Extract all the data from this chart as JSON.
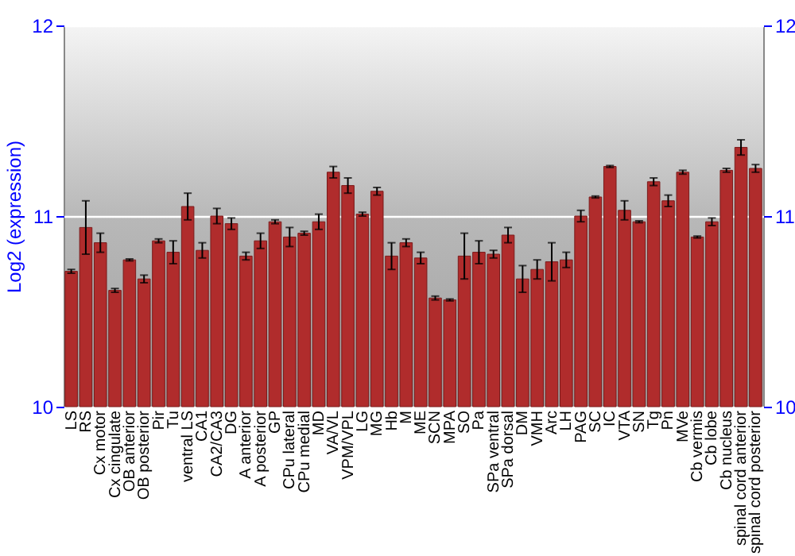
{
  "chart_data": {
    "type": "bar",
    "ylabel": "Log2 (expression)",
    "categories": [
      "LS",
      "RS",
      "Cx motor",
      "Cx cingulate",
      "OB anterior",
      "OB posterior",
      "Pir",
      "Tu",
      "ventral LS",
      "CA1",
      "CA2/CA3",
      "DG",
      "A anterior",
      "A posterior",
      "GP",
      "CPu lateral",
      "CPu medial",
      "MD",
      "VA/VL",
      "VPM/VPL",
      "LG",
      "MG",
      "Hb",
      "M",
      "ME",
      "SCN",
      "MPA",
      "SO",
      "Pa",
      "SPa ventral",
      "SPa dorsal",
      "DM",
      "VMH",
      "Arc",
      "LH",
      "PAG",
      "SC",
      "IC",
      "VTA",
      "SN",
      "Tg",
      "Pn",
      "MVe",
      "Cb vermis",
      "Cb lobe",
      "Cb nucleus",
      "spinal cord anterior",
      "spinal cord posterior"
    ],
    "values": [
      10.71,
      10.94,
      10.86,
      10.61,
      10.77,
      10.67,
      10.87,
      10.81,
      11.05,
      10.82,
      11.0,
      10.96,
      10.79,
      10.87,
      10.97,
      10.89,
      10.91,
      10.97,
      11.23,
      11.16,
      11.01,
      11.13,
      10.79,
      10.86,
      10.78,
      10.57,
      10.56,
      10.79,
      10.81,
      10.8,
      10.9,
      10.67,
      10.72,
      10.76,
      10.77,
      11.0,
      11.1,
      11.26,
      11.03,
      10.97,
      11.18,
      11.08,
      11.23,
      10.89,
      10.97,
      11.24,
      11.36,
      11.25
    ],
    "errors": [
      0.01,
      0.14,
      0.05,
      0.01,
      0.005,
      0.02,
      0.01,
      0.06,
      0.07,
      0.04,
      0.04,
      0.03,
      0.02,
      0.04,
      0.01,
      0.05,
      0.01,
      0.04,
      0.03,
      0.04,
      0.01,
      0.02,
      0.07,
      0.02,
      0.03,
      0.01,
      0.005,
      0.12,
      0.06,
      0.02,
      0.04,
      0.07,
      0.05,
      0.1,
      0.04,
      0.03,
      0.005,
      0.005,
      0.05,
      0.005,
      0.02,
      0.03,
      0.01,
      0.005,
      0.02,
      0.01,
      0.04,
      0.02
    ],
    "color": "#b02c2c",
    "ylim": [
      10,
      12
    ],
    "yticks": [
      10,
      11,
      12
    ],
    "y2lim": [
      10,
      12
    ],
    "y2ticks": [
      10,
      11,
      12
    ],
    "grid": "y"
  }
}
